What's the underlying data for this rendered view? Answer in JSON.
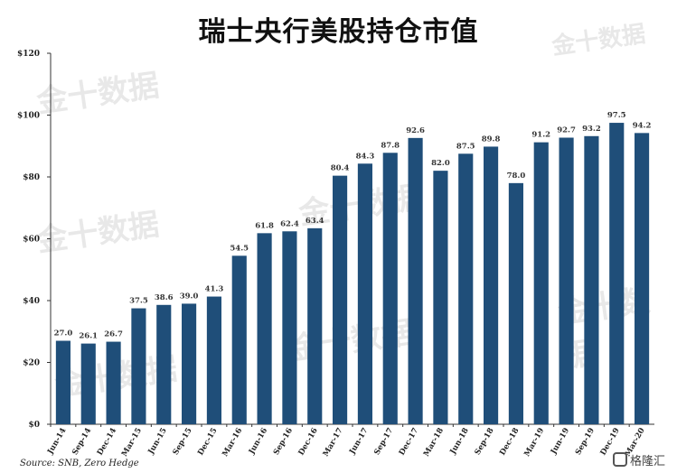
{
  "title": "瑞士央行美股持仓市值",
  "source": "Source: SNB, Zero Hedge",
  "watermark_text": "金十数据",
  "brand_text": "格隆汇",
  "colors": {
    "bar": "#1f4e79",
    "axis": "#333333",
    "grid": "#d9d9d9",
    "title": "#111111"
  },
  "chart_data": {
    "type": "bar",
    "title": "瑞士央行美股持仓市值",
    "xlabel": "",
    "ylabel": "",
    "ylim": [
      0,
      120
    ],
    "yticks": [
      0,
      20,
      40,
      60,
      80,
      100,
      120
    ],
    "ytick_labels": [
      "$0",
      "$20",
      "$40",
      "$60",
      "$80",
      "$100",
      "$120"
    ],
    "grid": false,
    "categories": [
      "Jun-14",
      "Sep-14",
      "Dec-14",
      "Mar-15",
      "Jun-15",
      "Sep-15",
      "Dec-15",
      "Mar-16",
      "Jun-16",
      "Sep-16",
      "Dec-16",
      "Mar-17",
      "Jun-17",
      "Sep-17",
      "Dec-17",
      "Mar-18",
      "Jun-18",
      "Sep-18",
      "Dec-18",
      "Mar-19",
      "Jun-19",
      "Sep-19",
      "Dec-19",
      "Mar-20"
    ],
    "values": [
      27.0,
      26.1,
      26.7,
      37.5,
      38.6,
      39.0,
      41.3,
      54.5,
      61.8,
      62.4,
      63.4,
      80.4,
      84.3,
      87.8,
      92.6,
      82.0,
      87.5,
      89.8,
      78.0,
      91.2,
      92.7,
      93.2,
      97.5,
      94.2
    ],
    "value_labels": [
      "27.0",
      "26.1",
      "26.7",
      "37.5",
      "38.6",
      "39.0",
      "41.3",
      "54.5",
      "61.8",
      "62.4",
      "63.4",
      "80.4",
      "84.3",
      "87.8",
      "92.6",
      "82.0",
      "87.5",
      "89.8",
      "78.0",
      "91.2",
      "92.7",
      "93.2",
      "97.5",
      "94.2"
    ]
  }
}
